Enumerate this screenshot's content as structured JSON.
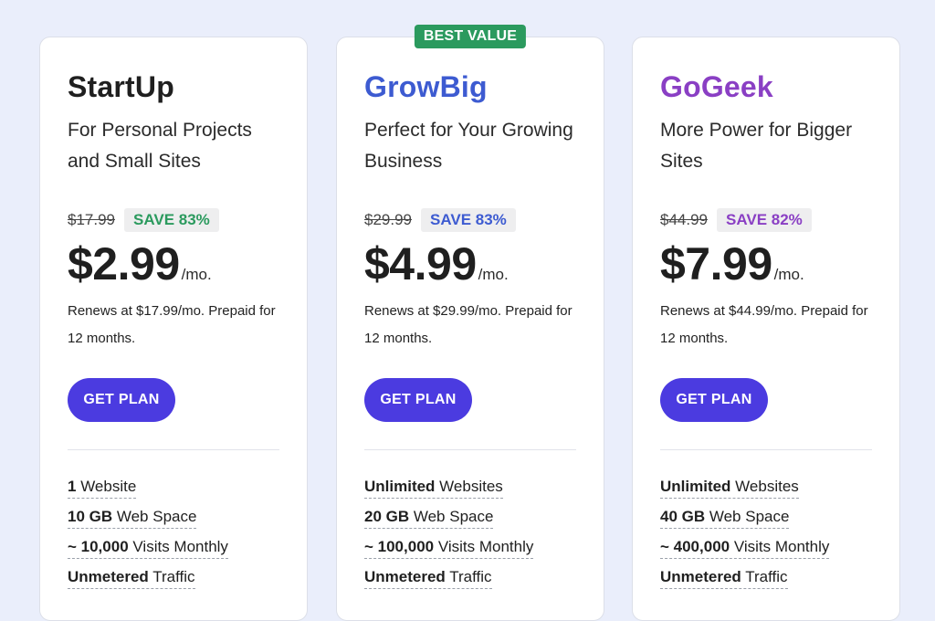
{
  "plans": [
    {
      "name": "StartUp",
      "name_color": "#1f1f1f",
      "tagline": "For Personal Projects and Small Sites",
      "old_price": "$17.99",
      "save": "SAVE 83%",
      "save_color": "#2b9a5e",
      "price": "$2.99",
      "per": "/mo.",
      "renews": "Renews at $17.99/mo. Prepaid for 12 months.",
      "cta": "GET PLAN",
      "features": [
        {
          "bold": "1",
          "text": " Website"
        },
        {
          "bold": "10 GB",
          "text": " Web Space"
        },
        {
          "bold": "~ 10,000",
          "text": " Visits Monthly"
        },
        {
          "bold": "Unmetered",
          "text": " Traffic"
        }
      ]
    },
    {
      "badge": "BEST VALUE",
      "name": "GrowBig",
      "name_color": "#3d5bd1",
      "tagline": "Perfect for Your Growing Business",
      "old_price": "$29.99",
      "save": "SAVE 83%",
      "save_color": "#3d5bd1",
      "price": "$4.99",
      "per": "/mo.",
      "renews": "Renews at $29.99/mo. Prepaid for 12 months.",
      "cta": "GET PLAN",
      "features": [
        {
          "bold": "Unlimited",
          "text": " Websites"
        },
        {
          "bold": "20 GB",
          "text": " Web Space"
        },
        {
          "bold": "~ 100,000",
          "text": " Visits Monthly"
        },
        {
          "bold": "Unmetered",
          "text": " Traffic"
        }
      ]
    },
    {
      "name": "GoGeek",
      "name_color": "#8a3fc4",
      "tagline": "More Power for Bigger Sites",
      "old_price": "$44.99",
      "save": "SAVE 82%",
      "save_color": "#8a3fc4",
      "price": "$7.99",
      "per": "/mo.",
      "renews": "Renews at $44.99/mo. Prepaid for 12 months.",
      "cta": "GET PLAN",
      "features": [
        {
          "bold": "Unlimited",
          "text": " Websites"
        },
        {
          "bold": "40 GB",
          "text": " Web Space"
        },
        {
          "bold": "~ 400,000",
          "text": " Visits Monthly"
        },
        {
          "bold": "Unmetered",
          "text": " Traffic"
        }
      ]
    }
  ]
}
